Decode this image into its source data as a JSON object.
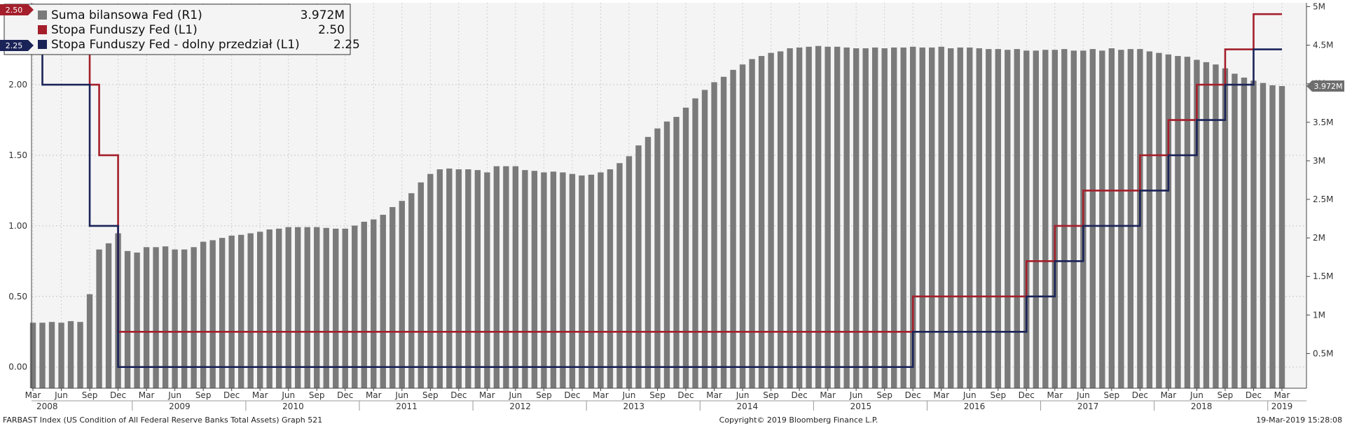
{
  "chart_data": {
    "type": "bar",
    "months": [
      "Mar",
      "Jun",
      "Sep",
      "Dec"
    ],
    "start": {
      "year": 2008,
      "month": 3
    },
    "end": {
      "year": 2019,
      "month": 3
    },
    "years": [
      "2008",
      "2009",
      "2010",
      "2011",
      "2012",
      "2013",
      "2014",
      "2015",
      "2016",
      "2017",
      "2018",
      "2019"
    ],
    "left_axis": {
      "ylim": [
        -0.15,
        2.58
      ],
      "ticks": [
        "0.00",
        "0.50",
        "1.00",
        "1.50",
        "2.00"
      ],
      "tick_values": [
        0,
        0.5,
        1.0,
        1.5,
        2.0
      ]
    },
    "right_axis": {
      "ylim": [
        0.05,
        5.05
      ],
      "ticks": [
        "0.5M",
        "1M",
        "1.5M",
        "2M",
        "2.5M",
        "3M",
        "3.5M",
        "4M",
        "4.5M",
        "5M"
      ],
      "tick_values": [
        0.5,
        1,
        1.5,
        2,
        2.5,
        3,
        3.5,
        4,
        4.5,
        5
      ]
    },
    "grid": true,
    "legend_position": "top-left",
    "series": [
      {
        "name": "Suma bilansowa Fed (R1)",
        "value_label": "3.972M",
        "flag_label": "3.972M",
        "kind": "bar",
        "axis": "right",
        "color": "#7a7a7a",
        "values": [
          0.9,
          0.9,
          0.91,
          0.9,
          0.92,
          0.91,
          1.27,
          1.85,
          1.93,
          2.06,
          1.83,
          1.81,
          1.88,
          1.88,
          1.89,
          1.85,
          1.85,
          1.88,
          1.95,
          1.97,
          2.0,
          2.03,
          2.04,
          2.06,
          2.08,
          2.11,
          2.12,
          2.14,
          2.14,
          2.14,
          2.14,
          2.13,
          2.12,
          2.12,
          2.16,
          2.21,
          2.24,
          2.3,
          2.4,
          2.48,
          2.58,
          2.72,
          2.83,
          2.89,
          2.9,
          2.89,
          2.89,
          2.88,
          2.85,
          2.93,
          2.93,
          2.93,
          2.88,
          2.87,
          2.85,
          2.86,
          2.85,
          2.83,
          2.81,
          2.82,
          2.85,
          2.89,
          2.97,
          3.06,
          3.2,
          3.31,
          3.42,
          3.51,
          3.57,
          3.69,
          3.81,
          3.92,
          4.02,
          4.09,
          4.18,
          4.25,
          4.32,
          4.36,
          4.4,
          4.42,
          4.46,
          4.47,
          4.48,
          4.49,
          4.48,
          4.48,
          4.47,
          4.46,
          4.46,
          4.47,
          4.46,
          4.47,
          4.47,
          4.48,
          4.47,
          4.47,
          4.48,
          4.46,
          4.47,
          4.47,
          4.46,
          4.45,
          4.45,
          4.44,
          4.45,
          4.43,
          4.43,
          4.44,
          4.44,
          4.45,
          4.43,
          4.43,
          4.45,
          4.43,
          4.46,
          4.44,
          4.45,
          4.45,
          4.42,
          4.4,
          4.38,
          4.36,
          4.35,
          4.31,
          4.28,
          4.25,
          4.2,
          4.13,
          4.08,
          4.04,
          4.01,
          3.98,
          3.97
        ]
      },
      {
        "name": "Stopa Funduszy Fed (L1)",
        "value_label": "2.50",
        "flag_label": "2.50",
        "kind": "step",
        "axis": "left",
        "color": "#a41f2b",
        "steps": [
          [
            0,
            2.25
          ],
          [
            6,
            2.0
          ],
          [
            7,
            1.5
          ],
          [
            9,
            0.25
          ],
          [
            93,
            0.5
          ],
          [
            105,
            0.75
          ],
          [
            108,
            1.0
          ],
          [
            111,
            1.25
          ],
          [
            117,
            1.5
          ],
          [
            120,
            1.75
          ],
          [
            123,
            2.0
          ],
          [
            126,
            2.25
          ],
          [
            129,
            2.5
          ],
          [
            132,
            2.5
          ]
        ]
      },
      {
        "name": "Stopa Funduszy Fed - dolny przedział (L1)",
        "value_label": "2.25",
        "flag_label": "2.25",
        "kind": "step",
        "axis": "left",
        "color": "#1a2358",
        "steps": [
          [
            0,
            2.25
          ],
          [
            1,
            2.0
          ],
          [
            6,
            1.0
          ],
          [
            7,
            1.0
          ],
          [
            9,
            0.0
          ],
          [
            93,
            0.25
          ],
          [
            105,
            0.5
          ],
          [
            108,
            0.75
          ],
          [
            111,
            1.0
          ],
          [
            117,
            1.25
          ],
          [
            120,
            1.5
          ],
          [
            123,
            1.75
          ],
          [
            126,
            2.0
          ],
          [
            129,
            2.25
          ],
          [
            132,
            2.25
          ]
        ]
      }
    ]
  },
  "footer": {
    "left": "FARBAST Index (US Condition of All Federal Reserve Banks Total Assets) Graph 521",
    "center": "Copyright© 2019 Bloomberg Finance L.P.",
    "right": "19-Mar-2019 15:28:08"
  }
}
